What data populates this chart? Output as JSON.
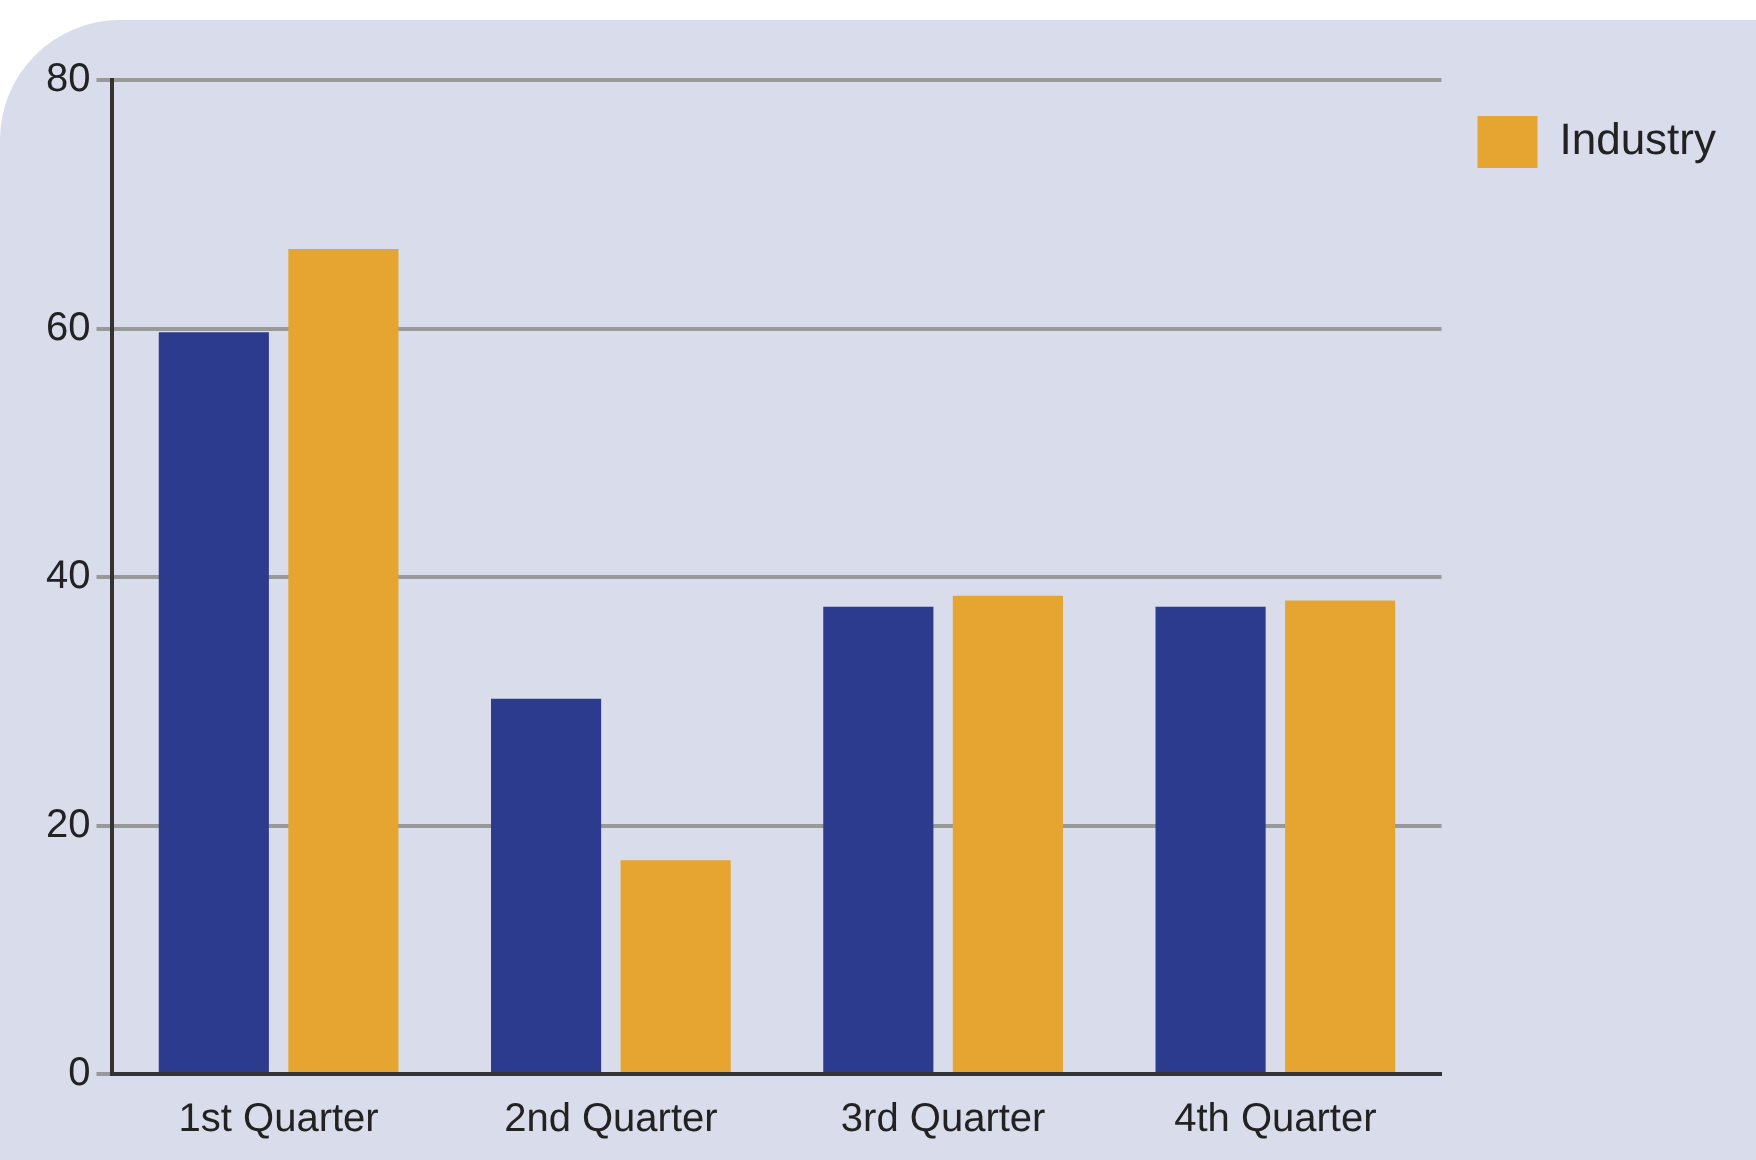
{
  "chart_data": {
    "type": "bar",
    "categories": [
      "1st Quarter",
      "2nd Quarter",
      "3rd Quarter",
      "4th Quarter"
    ],
    "series": [
      {
        "color": "#2d3b8e",
        "values": [
          59.7,
          30.2,
          37.6,
          37.6
        ]
      },
      {
        "name": "Industry",
        "color": "#e6a530",
        "values": [
          66.4,
          17.2,
          38.5,
          38.1
        ]
      }
    ],
    "ylim": [
      0,
      80
    ],
    "yticks": [
      0,
      20,
      40,
      60,
      80
    ],
    "grid": "y",
    "legend": "top right"
  }
}
